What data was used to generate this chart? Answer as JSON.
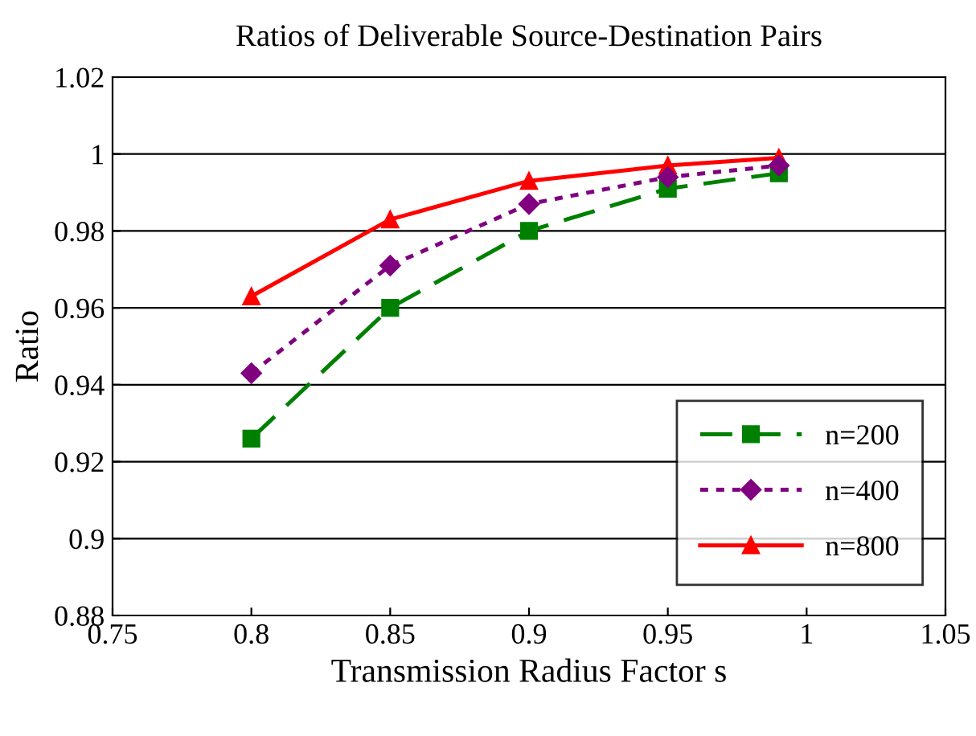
{
  "chart_data": {
    "type": "line",
    "title": "Ratios of Deliverable Source-Destination Pairs",
    "xlabel": "Transmission Radius Factor s",
    "ylabel": "Ratio",
    "x": [
      0.8,
      0.85,
      0.9,
      0.95,
      0.99
    ],
    "series": [
      {
        "name": "n=200",
        "color": "#008000",
        "marker": "square",
        "line_style": "dashed",
        "values": [
          0.926,
          0.96,
          0.98,
          0.991,
          0.995
        ]
      },
      {
        "name": "n=400",
        "color": "#800080",
        "marker": "diamond",
        "line_style": "dotted",
        "values": [
          0.943,
          0.971,
          0.987,
          0.994,
          0.997
        ]
      },
      {
        "name": "n=800",
        "color": "#ff0000",
        "marker": "triangle",
        "line_style": "solid",
        "values": [
          0.963,
          0.983,
          0.993,
          0.997,
          0.999
        ]
      }
    ],
    "xlim": [
      0.75,
      1.05
    ],
    "xticks": [
      0.75,
      0.8,
      0.85,
      0.9,
      0.95,
      1,
      1.05
    ],
    "ylim": [
      0.88,
      1.02
    ],
    "yticks": [
      0.88,
      0.9,
      0.92,
      0.94,
      0.96,
      0.98,
      1,
      1.02
    ],
    "grid": "y",
    "legend": "bottom right"
  }
}
